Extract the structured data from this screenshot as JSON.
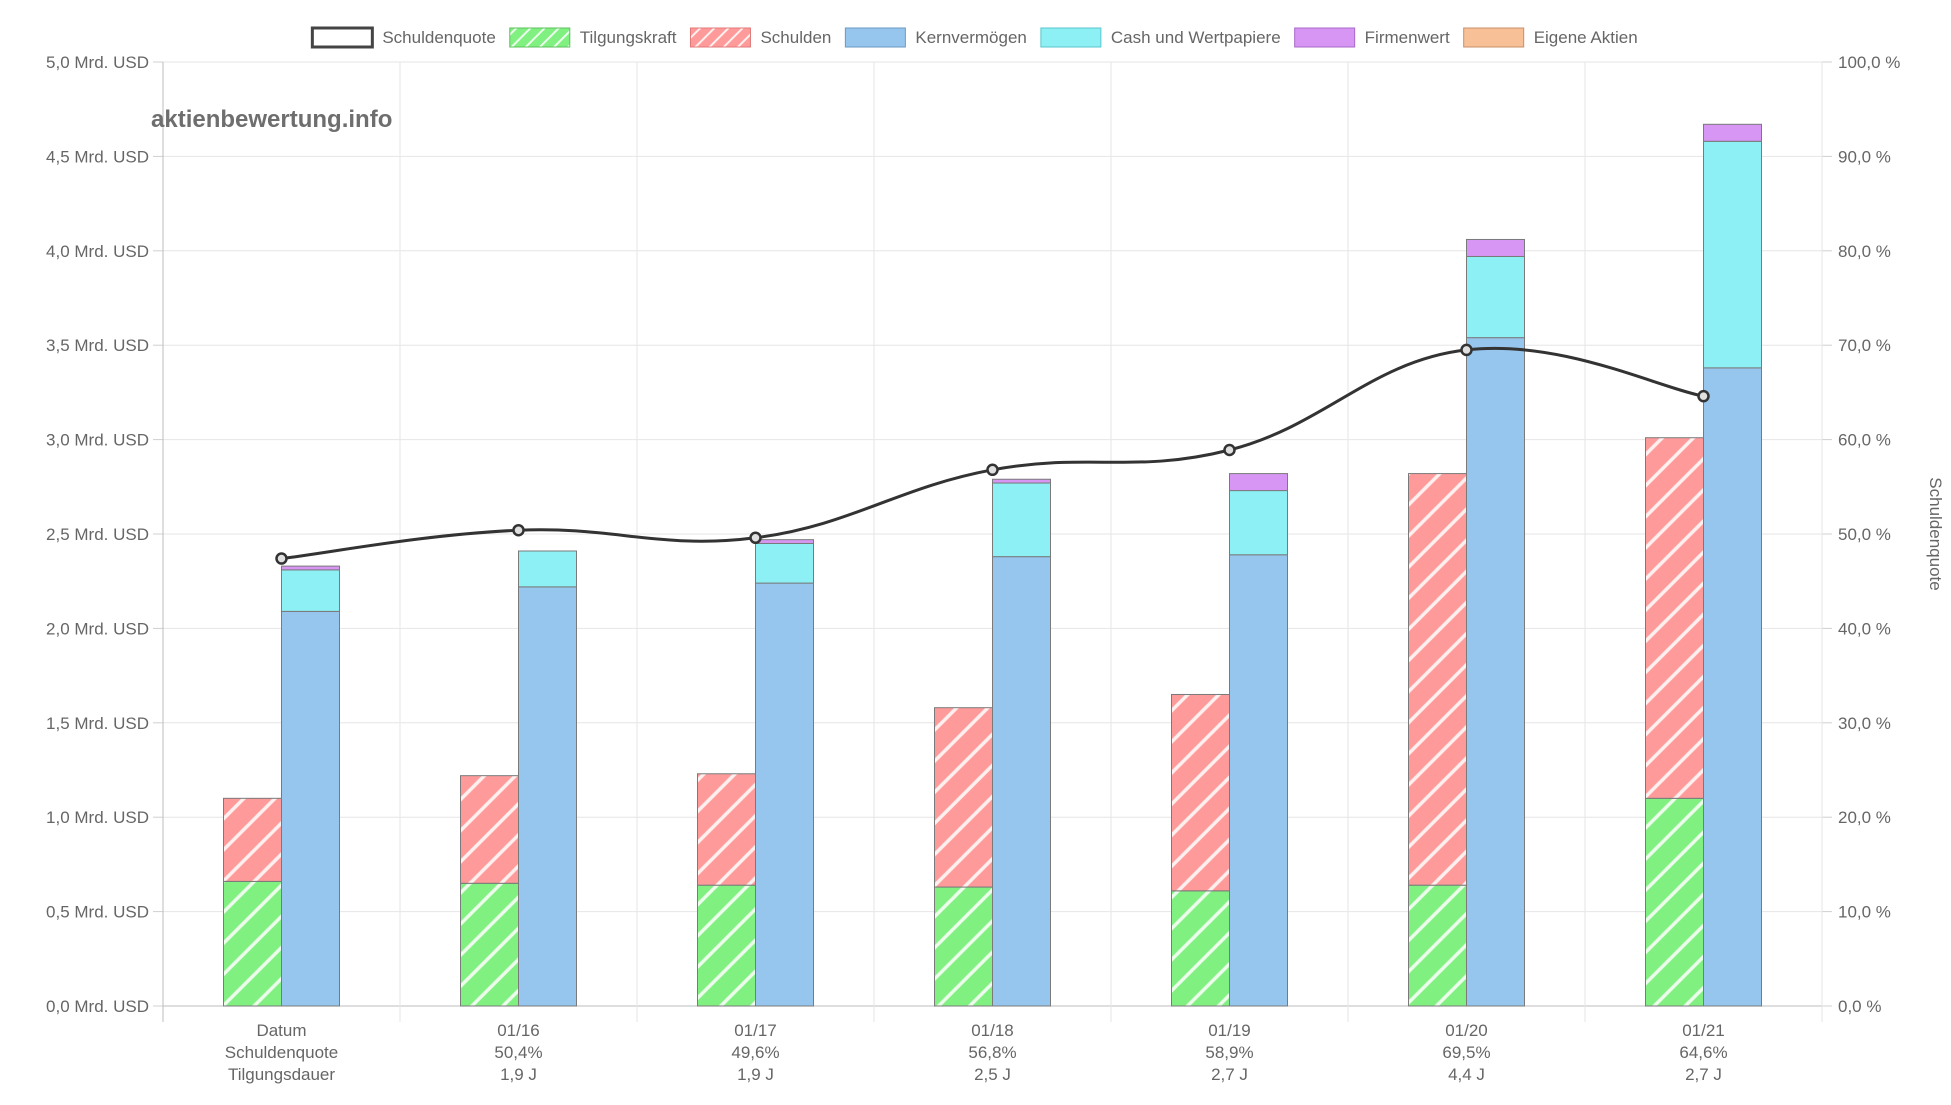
{
  "watermark": "aktienbewertung.info",
  "chart_data": {
    "type": "bar",
    "subtype": "stacked bar with line overlay",
    "categories": [
      "Datum",
      "01/16",
      "01/17",
      "01/18",
      "01/19",
      "01/20",
      "01/21"
    ],
    "x_sub_labels": [
      [
        "Datum",
        "Schuldenquote",
        "Tilgungsdauer"
      ],
      [
        "01/16",
        "50,4%",
        "1,9 J"
      ],
      [
        "01/17",
        "49,6%",
        "1,9 J"
      ],
      [
        "01/18",
        "56,8%",
        "2,5 J"
      ],
      [
        "01/19",
        "58,9%",
        "2,7 J"
      ],
      [
        "01/20",
        "69,5%",
        "4,4 J"
      ],
      [
        "01/21",
        "64,6%",
        "2,7 J"
      ]
    ],
    "legend": {
      "position": "top",
      "items": [
        {
          "label": "Schuldenquote",
          "color": "#ffffff",
          "border": "#444444",
          "pattern": false
        },
        {
          "label": "Tilgungskraft",
          "color": "#80f080",
          "border": "#5cc05c",
          "pattern": true
        },
        {
          "label": "Schulden",
          "color": "#ff9a9a",
          "border": "#e07a7a",
          "pattern": true
        },
        {
          "label": "Kernvermögen",
          "color": "#96c6ee",
          "border": "#6a9ac2",
          "pattern": false
        },
        {
          "label": "Cash und Wertpapiere",
          "color": "#8cf0f4",
          "border": "#5ac6cc",
          "pattern": false
        },
        {
          "label": "Firmenwert",
          "color": "#d896f4",
          "border": "#a86ac8",
          "pattern": false
        },
        {
          "label": "Eigene Aktien",
          "color": "#f8c096",
          "border": "#c8906a",
          "pattern": false
        }
      ]
    },
    "series": [
      {
        "name": "Tilgungskraft",
        "stack": "left",
        "values": [
          0.66,
          0.65,
          0.64,
          0.63,
          0.61,
          0.64,
          1.1
        ]
      },
      {
        "name": "Schulden",
        "stack": "left",
        "values": [
          0.44,
          0.57,
          0.59,
          0.95,
          1.04,
          2.18,
          1.91
        ]
      },
      {
        "name": "Kernvermögen",
        "stack": "right",
        "values": [
          2.09,
          2.22,
          2.24,
          2.38,
          2.39,
          3.54,
          3.38
        ]
      },
      {
        "name": "Cash und Wertpapiere",
        "stack": "right",
        "values": [
          0.22,
          0.19,
          0.21,
          0.39,
          0.34,
          0.43,
          1.2
        ]
      },
      {
        "name": "Firmenwert",
        "stack": "right",
        "values": [
          0.02,
          0.0,
          0.02,
          0.02,
          0.09,
          0.09,
          0.09
        ]
      },
      {
        "name": "Eigene Aktien",
        "stack": "right",
        "values": [
          0,
          0,
          0,
          0,
          0,
          0,
          0
        ]
      }
    ],
    "line": {
      "name": "Schuldenquote",
      "color": "#333333",
      "values": [
        47.4,
        50.4,
        49.6,
        56.8,
        58.9,
        69.5,
        64.6
      ]
    },
    "y_left": {
      "min": 0,
      "max": 5,
      "step": 0.5,
      "tick_labels": [
        "0,0 Mrd. USD",
        "0,5 Mrd. USD",
        "1,0 Mrd. USD",
        "1,5 Mrd. USD",
        "2,0 Mrd. USD",
        "2,5 Mrd. USD",
        "3,0 Mrd. USD",
        "3,5 Mrd. USD",
        "4,0 Mrd. USD",
        "4,5 Mrd. USD",
        "5,0 Mrd. USD"
      ]
    },
    "y_right": {
      "min": 0,
      "max": 100,
      "step": 10,
      "label": "Schuldenquote",
      "tick_labels": [
        "0,0 %",
        "10,0 %",
        "20,0 %",
        "30,0 %",
        "40,0 %",
        "50,0 %",
        "60,0 %",
        "70,0 %",
        "80,0 %",
        "90,0 %",
        "100,0 %"
      ]
    },
    "grid": true
  }
}
